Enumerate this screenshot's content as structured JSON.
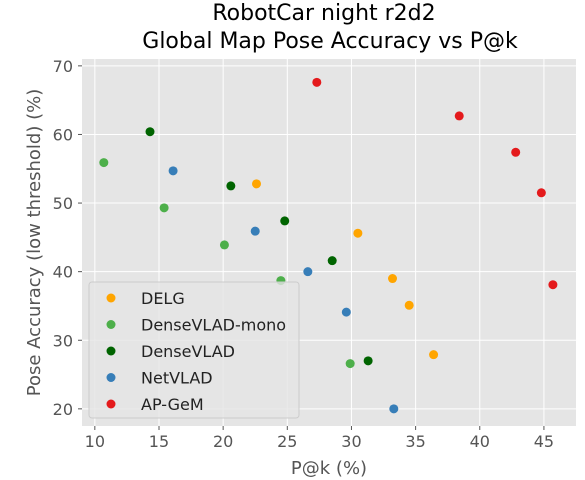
{
  "chart_data": {
    "type": "scatter",
    "title_line1": "RobotCar night r2d2",
    "title_line2": "Global Map Pose Accuracy vs P@k",
    "xlabel": "P@k (%)",
    "ylabel": "Pose Accuracy (low threshold) (%)",
    "xlim": [
      9,
      47.5
    ],
    "ylim": [
      17.5,
      71
    ],
    "xticks": [
      10,
      15,
      20,
      25,
      30,
      35,
      40,
      45
    ],
    "yticks": [
      20,
      30,
      40,
      50,
      60,
      70
    ],
    "grid": true,
    "legend_position": "lower-left",
    "series": [
      {
        "name": "DELG",
        "color": "#ffa500",
        "points": [
          [
            22.6,
            52.8
          ],
          [
            30.5,
            45.6
          ],
          [
            33.2,
            39.0
          ],
          [
            34.5,
            35.1
          ],
          [
            36.4,
            27.9
          ]
        ]
      },
      {
        "name": "DenseVLAD-mono",
        "color": "#4daf4a",
        "points": [
          [
            10.7,
            55.9
          ],
          [
            15.4,
            49.3
          ],
          [
            20.1,
            43.9
          ],
          [
            24.5,
            38.7
          ],
          [
            29.9,
            26.6
          ]
        ]
      },
      {
        "name": "DenseVLAD",
        "color": "#006400",
        "points": [
          [
            14.3,
            60.4
          ],
          [
            20.6,
            52.5
          ],
          [
            24.8,
            47.4
          ],
          [
            28.5,
            41.6
          ],
          [
            31.3,
            27.0
          ]
        ]
      },
      {
        "name": "NetVLAD",
        "color": "#377eb8",
        "points": [
          [
            16.1,
            54.7
          ],
          [
            22.5,
            45.9
          ],
          [
            26.6,
            40.0
          ],
          [
            29.6,
            34.1
          ],
          [
            33.3,
            20.0
          ]
        ]
      },
      {
        "name": "AP-GeM",
        "color": "#e41a1c",
        "points": [
          [
            27.3,
            67.6
          ],
          [
            38.4,
            62.7
          ],
          [
            42.8,
            57.4
          ],
          [
            44.8,
            51.5
          ],
          [
            45.7,
            38.1
          ]
        ]
      }
    ]
  }
}
